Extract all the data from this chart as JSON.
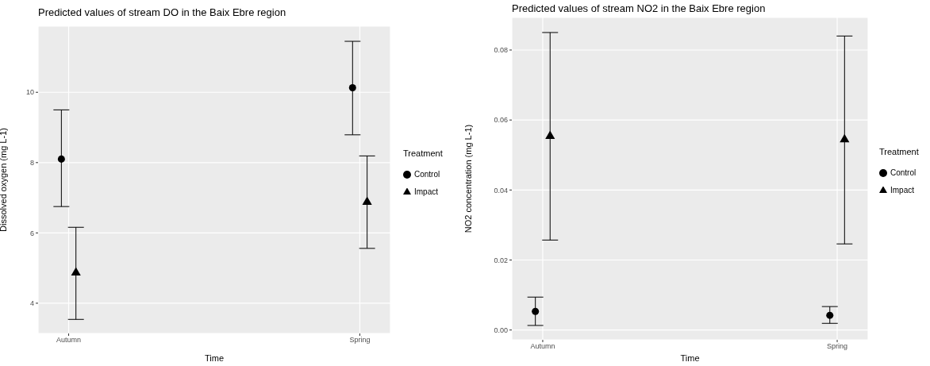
{
  "chart_data": [
    {
      "type": "scatter",
      "title": "Predicted values of stream DO in the Baix Ebre region",
      "xlabel": "Time",
      "ylabel": "Dissolved oxygen (mg L-1)",
      "legend_title": "Treatment",
      "categories": [
        "Autumn",
        "Spring"
      ],
      "ylim": [
        3.14,
        11.88
      ],
      "yticks": [
        4,
        6,
        8,
        10
      ],
      "grid": true,
      "legend": "right",
      "series": [
        {
          "name": "Control",
          "color": "#000000",
          "marker": "circle",
          "values": [
            8.1,
            10.13
          ],
          "errors": [
            [
              6.75,
              9.5
            ],
            [
              8.79,
              11.45
            ]
          ]
        },
        {
          "name": "Impact",
          "color": "#000000",
          "marker": "triangle",
          "values": [
            4.87,
            6.88
          ],
          "errors": [
            [
              3.54,
              6.16
            ],
            [
              5.56,
              8.19
            ]
          ]
        }
      ]
    },
    {
      "type": "scatter",
      "title": "Predicted values of stream NO2 in the Baix Ebre region",
      "xlabel": "Time",
      "ylabel": "NO2 concentration (mg L-1)",
      "legend_title": "Treatment",
      "categories": [
        "Autumn",
        "Spring"
      ],
      "ylim": [
        -0.0028,
        0.0893
      ],
      "yticks": [
        {
          "value": 0,
          "label": "0.00"
        },
        {
          "value": 0.02,
          "label": "0.02"
        },
        {
          "value": 0.04,
          "label": "0.04"
        },
        {
          "value": 0.06,
          "label": "0.06"
        },
        {
          "value": 0.08,
          "label": "0.08"
        }
      ],
      "grid": true,
      "legend": "right",
      "series": [
        {
          "name": "Control",
          "color": "#000000",
          "marker": "circle",
          "values": [
            0.0053,
            0.0042
          ],
          "errors": [
            [
              0.0013,
              0.0094
            ],
            [
              0.0019,
              0.0067
            ]
          ]
        },
        {
          "name": "Impact",
          "color": "#000000",
          "marker": "triangle",
          "values": [
            0.0554,
            0.0544
          ],
          "errors": [
            [
              0.0257,
              0.085
            ],
            [
              0.0246,
              0.084
            ]
          ]
        }
      ]
    }
  ]
}
